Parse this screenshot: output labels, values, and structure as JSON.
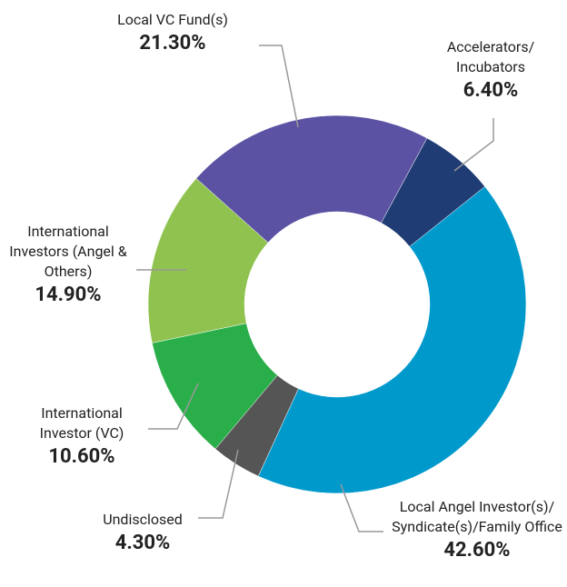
{
  "chart_data": {
    "type": "donut",
    "categories": [
      "Accelerators/ Incubators",
      "Local Angel Investor(s)/ Syndicate(s)/Family Office",
      "Undisclosed",
      "International Investor (VC)",
      "International Investors (Angel & Others)",
      "Local VC Fund(s)"
    ],
    "values": [
      6.4,
      42.6,
      4.3,
      10.6,
      14.9,
      21.3
    ],
    "value_labels": [
      "6.40%",
      "42.60%",
      "4.30%",
      "10.60%",
      "14.90%",
      "21.30%"
    ],
    "colors": [
      "#1f3c74",
      "#0099cc",
      "#555555",
      "#2aae4a",
      "#8fc24f",
      "#5b52a3"
    ]
  }
}
